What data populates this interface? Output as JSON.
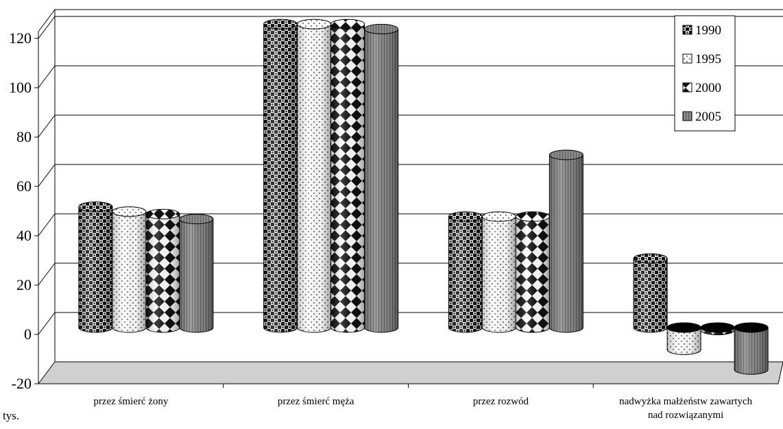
{
  "chart_data": {
    "type": "bar",
    "style": "3d-cylinder",
    "unit_label": "tys.",
    "categories": [
      [
        "przez śmierć żony"
      ],
      [
        "przez śmierć męża"
      ],
      [
        "przez rozwód"
      ],
      [
        "nadwyżka małżeństw zawartych",
        "nad rozwiązanymi"
      ]
    ],
    "series": [
      {
        "name": "1990",
        "values": [
          49,
          123,
          45,
          28
        ],
        "pattern": "checker"
      },
      {
        "name": "1995",
        "values": [
          47,
          123,
          45,
          -9
        ],
        "pattern": "dots"
      },
      {
        "name": "2000",
        "values": [
          46,
          123,
          45,
          -1
        ],
        "pattern": "diamonds"
      },
      {
        "name": "2005",
        "values": [
          44,
          121,
          70,
          -17
        ],
        "pattern": "stripes"
      }
    ],
    "y_ticks": [
      "-20",
      "0",
      "20",
      "40",
      "60",
      "80",
      "100",
      "120"
    ],
    "ylim": [
      -20,
      120
    ],
    "grid": true,
    "legend_position": "top-right",
    "colors": {
      "floor": "#d0d0d0",
      "stripes_fill": "#808080",
      "grid": "#000000"
    }
  }
}
